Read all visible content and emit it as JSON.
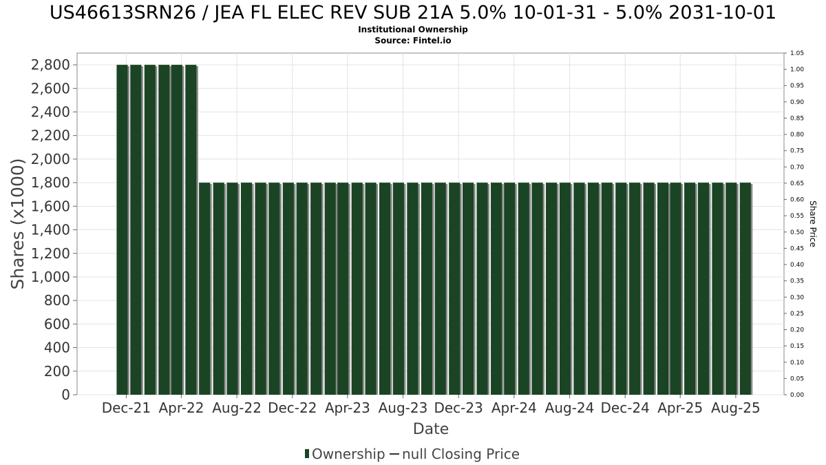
{
  "chart_data": {
    "type": "bar",
    "title": "US46613SRN26 / JEA FL ELEC REV SUB 21A 5.0% 10-01-31 - 5.0% 2031-10-01",
    "subtitle_lines": [
      "Institutional Ownership",
      "Source: Fintel.io"
    ],
    "xlabel": "Date",
    "ylabel": "Shares (x1000)",
    "ylabel_right": "Share Price",
    "ylim": [
      0,
      2900
    ],
    "ylim_right": [
      0,
      1.05
    ],
    "grid": true,
    "legend_position": "bottom",
    "y_ticks": [
      "0",
      "200",
      "400",
      "600",
      "800",
      "1,000",
      "1,200",
      "1,400",
      "1,600",
      "1,800",
      "2,000",
      "2,200",
      "2,400",
      "2,600",
      "2,800"
    ],
    "y_tick_values": [
      0,
      200,
      400,
      600,
      800,
      1000,
      1200,
      1400,
      1600,
      1800,
      2000,
      2200,
      2400,
      2600,
      2800
    ],
    "y_right_ticks": [
      "0.00",
      "0.05",
      "0.10",
      "0.15",
      "0.20",
      "0.25",
      "0.30",
      "0.35",
      "0.40",
      "0.45",
      "0.50",
      "0.55",
      "0.60",
      "0.65",
      "0.70",
      "0.75",
      "0.80",
      "0.85",
      "0.90",
      "0.95",
      "1.00",
      "1.05"
    ],
    "y_right_tick_values": [
      0,
      0.05,
      0.1,
      0.15,
      0.2,
      0.25,
      0.3,
      0.35,
      0.4,
      0.45,
      0.5,
      0.55,
      0.6,
      0.65,
      0.7,
      0.75,
      0.8,
      0.85,
      0.9,
      0.95,
      1.0,
      1.05
    ],
    "x_ticks": [
      "Dec-21",
      "Apr-22",
      "Aug-22",
      "Dec-22",
      "Apr-23",
      "Aug-23",
      "Dec-23",
      "Apr-24",
      "Aug-24",
      "Dec-24",
      "Apr-25",
      "Aug-25"
    ],
    "x_tick_dates": [
      "2021-12-01",
      "2022-04-01",
      "2022-08-01",
      "2022-12-01",
      "2023-04-01",
      "2023-08-01",
      "2023-12-01",
      "2024-04-01",
      "2024-08-01",
      "2024-12-01",
      "2025-04-01",
      "2025-08-01"
    ],
    "x_range": [
      "2021-08-15",
      "2025-11-15"
    ],
    "series": [
      {
        "name": "Ownership",
        "color": "#1b4424",
        "points": [
          {
            "date": "2021-11-22",
            "value": 2800
          },
          {
            "date": "2021-12-22",
            "value": 2800
          },
          {
            "date": "2022-01-22",
            "value": 2800
          },
          {
            "date": "2022-02-22",
            "value": 2800
          },
          {
            "date": "2022-03-22",
            "value": 2800
          },
          {
            "date": "2022-04-22",
            "value": 2800
          },
          {
            "date": "2022-05-22",
            "value": 1800
          },
          {
            "date": "2022-06-22",
            "value": 1800
          },
          {
            "date": "2022-07-22",
            "value": 1800
          },
          {
            "date": "2022-08-22",
            "value": 1800
          },
          {
            "date": "2022-09-22",
            "value": 1800
          },
          {
            "date": "2022-10-22",
            "value": 1800
          },
          {
            "date": "2022-11-22",
            "value": 1800
          },
          {
            "date": "2022-12-22",
            "value": 1800
          },
          {
            "date": "2023-01-22",
            "value": 1800
          },
          {
            "date": "2023-02-22",
            "value": 1800
          },
          {
            "date": "2023-03-22",
            "value": 1800
          },
          {
            "date": "2023-04-22",
            "value": 1800
          },
          {
            "date": "2023-05-22",
            "value": 1800
          },
          {
            "date": "2023-06-22",
            "value": 1800
          },
          {
            "date": "2023-07-22",
            "value": 1800
          },
          {
            "date": "2023-08-22",
            "value": 1800
          },
          {
            "date": "2023-09-22",
            "value": 1800
          },
          {
            "date": "2023-10-22",
            "value": 1800
          },
          {
            "date": "2023-11-22",
            "value": 1800
          },
          {
            "date": "2023-12-22",
            "value": 1800
          },
          {
            "date": "2024-01-22",
            "value": 1800
          },
          {
            "date": "2024-02-22",
            "value": 1800
          },
          {
            "date": "2024-03-22",
            "value": 1800
          },
          {
            "date": "2024-04-22",
            "value": 1800
          },
          {
            "date": "2024-05-22",
            "value": 1800
          },
          {
            "date": "2024-06-22",
            "value": 1800
          },
          {
            "date": "2024-07-22",
            "value": 1800
          },
          {
            "date": "2024-08-22",
            "value": 1800
          },
          {
            "date": "2024-09-22",
            "value": 1800
          },
          {
            "date": "2024-10-22",
            "value": 1800
          },
          {
            "date": "2024-11-22",
            "value": 1800
          },
          {
            "date": "2024-12-22",
            "value": 1800
          },
          {
            "date": "2025-01-22",
            "value": 1800
          },
          {
            "date": "2025-02-22",
            "value": 1800
          },
          {
            "date": "2025-03-22",
            "value": 1800
          },
          {
            "date": "2025-04-22",
            "value": 1800
          },
          {
            "date": "2025-05-22",
            "value": 1800
          },
          {
            "date": "2025-06-22",
            "value": 1800
          },
          {
            "date": "2025-07-22",
            "value": 1800
          },
          {
            "date": "2025-08-22",
            "value": 1800
          }
        ]
      },
      {
        "name": "null Closing Price",
        "color": "#333333",
        "points": []
      }
    ]
  }
}
